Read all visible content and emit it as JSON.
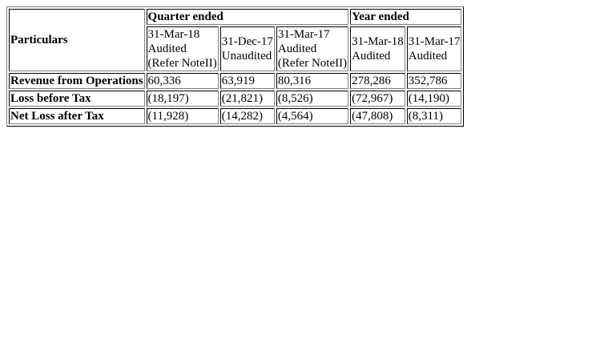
{
  "table": {
    "row_header": "Particulars",
    "group_headers": {
      "quarter": "Quarter ended",
      "year": "Year ended"
    },
    "columns": [
      {
        "date": "31-Mar-18",
        "status": "Audited",
        "note": "(Refer NoteII)"
      },
      {
        "date": "31-Dec-17",
        "status": "Unaudited",
        "note": ""
      },
      {
        "date": "31-Mar-17",
        "status": "Audited",
        "note": "(Refer NoteII)"
      },
      {
        "date": "31-Mar-18",
        "status": "Audited",
        "note": ""
      },
      {
        "date": "31-Mar-17",
        "status": "Audited",
        "note": ""
      }
    ],
    "rows": [
      {
        "label": "Revenue from Operations",
        "values": [
          "60,336",
          "63,919",
          "80,316",
          "278,286",
          "352,786"
        ]
      },
      {
        "label": "Loss before Tax",
        "values": [
          "(18,197)",
          "(21,821)",
          "(8,526)",
          "(72,967)",
          "(14,190)"
        ]
      },
      {
        "label": "Net Loss after Tax",
        "values": [
          "(11,928)",
          "(14,282)",
          "(4,564)",
          "(47,808)",
          "(8,311)"
        ]
      }
    ]
  }
}
